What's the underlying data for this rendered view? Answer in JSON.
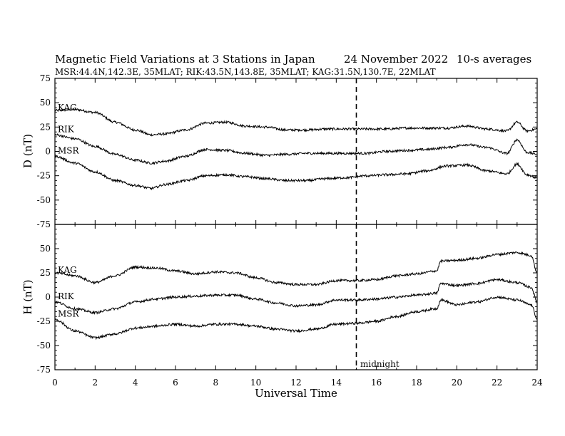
{
  "header": {
    "title": "Magnetic Field Variations at 3 Stations in Japan",
    "date": "24 November 2022",
    "averaging": "10-s averages",
    "stations": "MSR:44.4N,142.3E, 35MLAT;  RIK:43.5N,143.8E, 35MLAT;  KAG:31.5N,130.7E, 22MLAT"
  },
  "chart_data": [
    {
      "type": "line",
      "panel": "top",
      "ylabel": "D (nT)",
      "ylim": [
        -75,
        75
      ],
      "yticks": [
        75,
        50,
        25,
        0,
        -25,
        -50,
        -75
      ],
      "xlabel": "",
      "xlim": [
        0,
        24
      ],
      "series": [
        {
          "name": "KAG",
          "x": [
            0,
            1,
            2,
            3,
            4,
            4.8,
            5.5,
            6.5,
            7.5,
            8.5,
            9.5,
            10.5,
            11.5,
            12.5,
            13.5,
            14.5,
            15.5,
            16.5,
            17.5,
            18.5,
            19.5,
            20.5,
            21.5,
            22.5,
            23.0,
            23.5,
            24
          ],
          "y": [
            42,
            43,
            40,
            30,
            22,
            17,
            18,
            22,
            29,
            30,
            26,
            25,
            22,
            22,
            23,
            23,
            23,
            23,
            24,
            24,
            24,
            26,
            23,
            21,
            30,
            21,
            23
          ]
        },
        {
          "name": "RIK",
          "x": [
            0,
            1,
            2,
            3,
            4,
            4.8,
            5.5,
            6.5,
            7.5,
            8.5,
            9.5,
            10.5,
            11.5,
            12.5,
            13.5,
            14.5,
            15.5,
            16.5,
            17.5,
            18.5,
            19.5,
            20.5,
            21.5,
            22.5,
            23.0,
            23.5,
            24
          ],
          "y": [
            17,
            13,
            5,
            -3,
            -9,
            -12,
            -10,
            -5,
            2,
            1,
            -2,
            -4,
            -3,
            -2,
            -2,
            -2,
            -2,
            0,
            1,
            2,
            4,
            7,
            4,
            -2,
            12,
            -1,
            -3
          ]
        },
        {
          "name": "MSR",
          "x": [
            0,
            1,
            2,
            3,
            4,
            4.8,
            5.5,
            6.5,
            7.5,
            8.5,
            9.5,
            10.5,
            11.5,
            12.5,
            13.5,
            14.5,
            15.5,
            16.5,
            17.5,
            18.5,
            19.5,
            20.5,
            21.5,
            22.5,
            23.0,
            23.5,
            24
          ],
          "y": [
            -5,
            -12,
            -21,
            -30,
            -35,
            -38,
            -34,
            -30,
            -25,
            -24,
            -26,
            -28,
            -30,
            -30,
            -28,
            -27,
            -25,
            -24,
            -23,
            -20,
            -15,
            -14,
            -20,
            -23,
            -13,
            -24,
            -27
          ]
        }
      ]
    },
    {
      "type": "line",
      "panel": "bottom",
      "ylabel": "H (nT)",
      "ylim": [
        -75,
        75
      ],
      "yticks": [
        50,
        25,
        0,
        -25,
        -50,
        -75
      ],
      "xlabel": "Universal Time",
      "xlim": [
        0,
        24
      ],
      "xticks": [
        0,
        2,
        4,
        6,
        8,
        10,
        12,
        14,
        16,
        18,
        20,
        22,
        24
      ],
      "annotation": {
        "x": 15,
        "label": "midnight"
      },
      "series": [
        {
          "name": "KAG",
          "x": [
            0,
            1,
            2,
            3,
            4,
            5,
            6,
            7,
            8,
            9,
            10,
            11,
            12,
            13,
            14,
            15,
            16,
            17,
            18,
            19,
            19.2,
            20,
            21,
            22,
            23,
            23.7,
            24
          ],
          "y": [
            25,
            22,
            15,
            22,
            31,
            30,
            27,
            24,
            26,
            25,
            20,
            15,
            13,
            13,
            17,
            17,
            18,
            22,
            24,
            27,
            37,
            38,
            40,
            44,
            46,
            43,
            25
          ]
        },
        {
          "name": "RIK",
          "x": [
            0,
            1,
            2,
            3,
            4,
            5,
            6,
            7,
            8,
            9,
            10,
            11,
            12,
            13,
            14,
            15,
            16,
            17,
            18,
            19,
            19.2,
            20,
            21,
            22,
            23,
            23.7,
            24
          ],
          "y": [
            -5,
            -12,
            -16,
            -12,
            -5,
            -2,
            0,
            1,
            2,
            2,
            -2,
            -6,
            -9,
            -8,
            -3,
            -3,
            -2,
            0,
            2,
            4,
            14,
            12,
            14,
            18,
            15,
            10,
            -5
          ]
        },
        {
          "name": "MSR",
          "x": [
            0,
            1,
            2,
            3,
            4,
            5,
            6,
            7,
            8,
            9,
            10,
            11,
            12,
            13,
            14,
            15,
            16,
            17,
            18,
            19,
            19.2,
            20,
            21,
            22,
            23,
            23.7,
            24
          ],
          "y": [
            -23,
            -35,
            -42,
            -38,
            -32,
            -30,
            -28,
            -30,
            -28,
            -28,
            -30,
            -33,
            -35,
            -33,
            -28,
            -27,
            -25,
            -20,
            -15,
            -12,
            -3,
            -8,
            -5,
            0,
            -3,
            -8,
            -22
          ]
        }
      ]
    }
  ]
}
